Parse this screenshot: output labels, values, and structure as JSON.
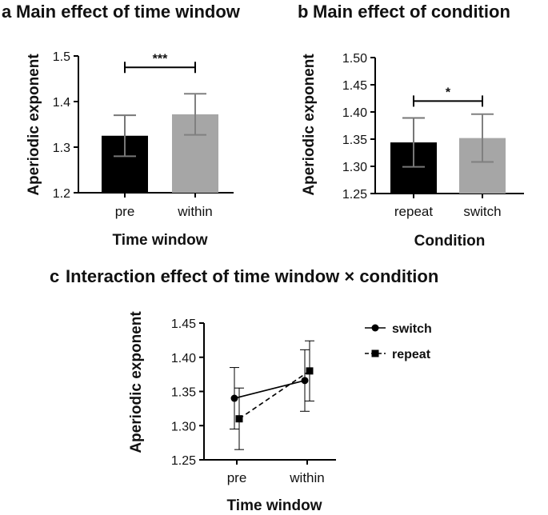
{
  "chart_data": [
    {
      "panel": "a",
      "type": "bar",
      "title": "Main effect of time window",
      "xlabel": "Time window",
      "ylabel": "Aperiodic exponent",
      "categories": [
        "pre",
        "within"
      ],
      "values": [
        1.325,
        1.372
      ],
      "error": [
        0.045,
        0.045
      ],
      "colors": [
        "#000000",
        "#a6a6a6"
      ],
      "ylim": [
        1.2,
        1.5
      ],
      "yticks": [
        "1.2",
        "1.3",
        "1.4",
        "1.5"
      ],
      "significance": {
        "label": "***",
        "between": [
          "pre",
          "within"
        ],
        "y": 1.475
      },
      "grid": false
    },
    {
      "panel": "b",
      "type": "bar",
      "title": "Main effect of condition",
      "xlabel": "Condition",
      "ylabel": "Aperiodic exponent",
      "categories": [
        "repeat",
        "switch"
      ],
      "values": [
        1.344,
        1.352
      ],
      "error": [
        0.045,
        0.044
      ],
      "colors": [
        "#000000",
        "#a6a6a6"
      ],
      "ylim": [
        1.25,
        1.5
      ],
      "yticks": [
        "1.25",
        "1.30",
        "1.35",
        "1.40",
        "1.45",
        "1.50"
      ],
      "significance": {
        "label": "*",
        "between": [
          "repeat",
          "switch"
        ],
        "y": 1.42
      },
      "grid": false
    },
    {
      "panel": "c",
      "type": "line",
      "title": "Interaction effect of time window × condition",
      "xlabel": "Time window",
      "ylabel": "Aperiodic exponent",
      "categories": [
        "pre",
        "within"
      ],
      "ylim": [
        1.25,
        1.45
      ],
      "yticks": [
        "1.25",
        "1.30",
        "1.35",
        "1.40",
        "1.45"
      ],
      "series": [
        {
          "name": "switch",
          "values": [
            1.34,
            1.366
          ],
          "error": [
            0.045,
            0.045
          ],
          "marker": "circle",
          "line": "solid",
          "color": "#000000"
        },
        {
          "name": "repeat",
          "values": [
            1.31,
            1.38
          ],
          "error": [
            0.045,
            0.044
          ],
          "marker": "square",
          "line": "dashed",
          "color": "#000000"
        }
      ],
      "legend": "right",
      "grid": false
    }
  ]
}
